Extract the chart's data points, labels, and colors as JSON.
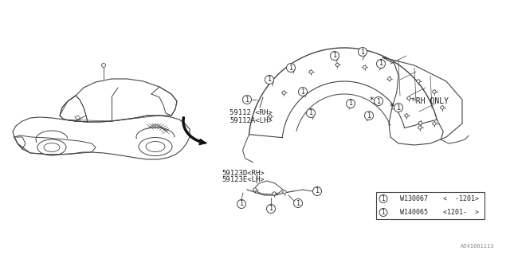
{
  "bg_color": "#ffffff",
  "diagram_id": "A541001113",
  "line_color": "#444444",
  "text_color": "#222222",
  "font_size": 6.5,
  "note_rh_only": "*RH ONLY",
  "label_59112": "59112 <RH>",
  "label_59112A": "59112A<LH>",
  "label_59123D": "59123D<RH>",
  "label_59123E": "59123E<LH>",
  "table_rows": [
    {
      "symbol": "1",
      "part": "W130067",
      "note": "<  -1201>"
    },
    {
      "symbol": "1",
      "part": "W140065",
      "note": "<1201-  >"
    }
  ]
}
